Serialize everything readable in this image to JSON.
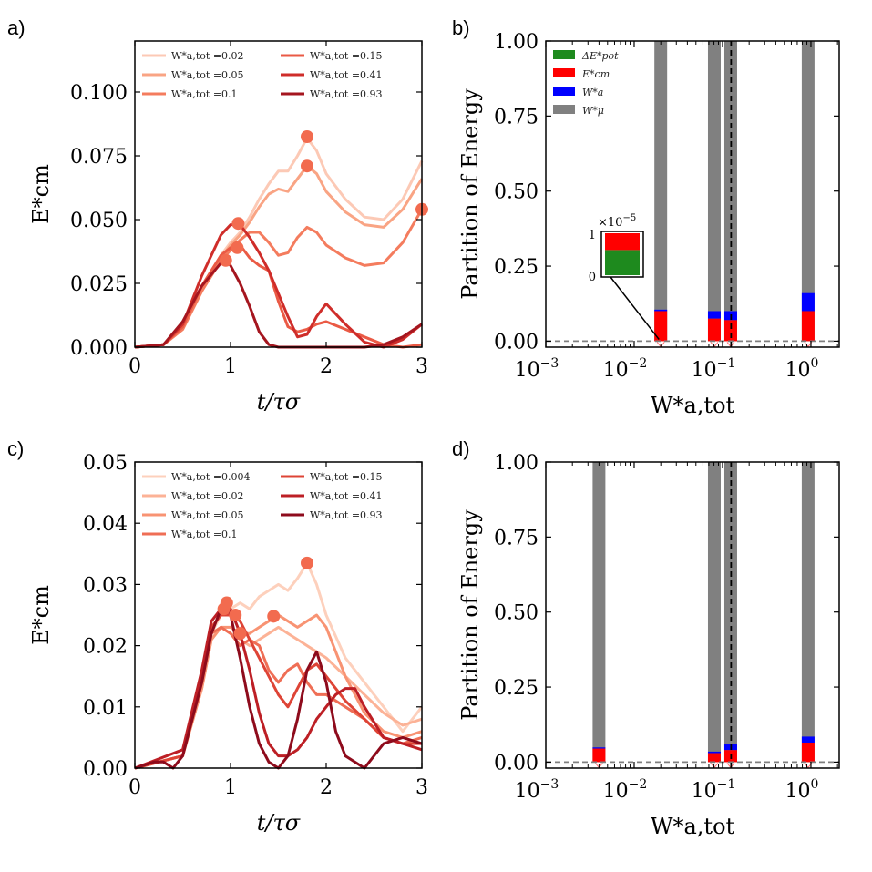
{
  "chart_data": [
    {
      "id": "a",
      "panel_label": "a)",
      "type": "line",
      "xlabel": "t/τσ",
      "ylabel": "E*cm",
      "xlim": [
        0,
        3
      ],
      "ylim": [
        0,
        0.12
      ],
      "xticks": [
        "0",
        "1",
        "2",
        "3"
      ],
      "yticks": [
        "0.000",
        "0.025",
        "0.050",
        "0.075",
        "0.100"
      ],
      "ytick_values": [
        0,
        0.025,
        0.05,
        0.075,
        0.1
      ],
      "legend": {
        "placement": "top",
        "ncol": 2
      },
      "series": [
        {
          "name": "W*a,tot =0.02",
          "color": "#fcc9b5",
          "x": [
            0,
            0.3,
            0.5,
            0.7,
            0.9,
            1.0,
            1.1,
            1.2,
            1.3,
            1.4,
            1.5,
            1.6,
            1.7,
            1.8,
            1.9,
            2.0,
            2.2,
            2.4,
            2.6,
            2.8,
            3.0
          ],
          "y": [
            0,
            0.001,
            0.007,
            0.022,
            0.036,
            0.041,
            0.045,
            0.051,
            0.058,
            0.064,
            0.069,
            0.069,
            0.075,
            0.082,
            0.077,
            0.068,
            0.058,
            0.051,
            0.05,
            0.058,
            0.073
          ],
          "marker": {
            "x": 1.8,
            "y": 0.0825
          }
        },
        {
          "name": "W*a,tot =0.05",
          "color": "#f9a484",
          "x": [
            0,
            0.3,
            0.5,
            0.7,
            0.9,
            1.0,
            1.1,
            1.2,
            1.3,
            1.4,
            1.5,
            1.6,
            1.7,
            1.8,
            1.9,
            2.0,
            2.2,
            2.4,
            2.6,
            2.8,
            3.0
          ],
          "y": [
            0,
            0.001,
            0.007,
            0.022,
            0.035,
            0.04,
            0.044,
            0.049,
            0.055,
            0.06,
            0.062,
            0.061,
            0.066,
            0.071,
            0.068,
            0.061,
            0.053,
            0.048,
            0.047,
            0.054,
            0.066
          ],
          "marker": {
            "x": 1.8,
            "y": 0.071
          }
        },
        {
          "name": "W*a,tot =0.1",
          "color": "#f47c5e",
          "x": [
            0,
            0.3,
            0.5,
            0.7,
            0.9,
            1.0,
            1.1,
            1.2,
            1.3,
            1.4,
            1.5,
            1.6,
            1.7,
            1.8,
            1.9,
            2.0,
            2.2,
            2.4,
            2.6,
            2.8,
            3.0
          ],
          "y": [
            0,
            0.001,
            0.007,
            0.022,
            0.034,
            0.038,
            0.042,
            0.045,
            0.045,
            0.041,
            0.036,
            0.037,
            0.043,
            0.047,
            0.045,
            0.04,
            0.035,
            0.032,
            0.033,
            0.041,
            0.054
          ],
          "marker": {
            "x": 3.0,
            "y": 0.054
          }
        },
        {
          "name": "W*a,tot =0.15",
          "color": "#ea5a45",
          "x": [
            0,
            0.3,
            0.5,
            0.7,
            0.9,
            1.0,
            1.1,
            1.2,
            1.3,
            1.4,
            1.5,
            1.6,
            1.7,
            1.8,
            1.9,
            2.0,
            2.2,
            2.4,
            2.6,
            2.8,
            3.0
          ],
          "y": [
            0,
            0.001,
            0.008,
            0.024,
            0.036,
            0.039,
            0.04,
            0.035,
            0.032,
            0.03,
            0.018,
            0.008,
            0.006,
            0.007,
            0.009,
            0.01,
            0.007,
            0.004,
            0.001,
            0.0,
            0.001
          ],
          "marker": {
            "x": 1.07,
            "y": 0.039
          }
        },
        {
          "name": "W*a,tot =0.41",
          "color": "#cf2d2a",
          "x": [
            0,
            0.3,
            0.5,
            0.7,
            0.9,
            1.0,
            1.1,
            1.2,
            1.3,
            1.4,
            1.5,
            1.6,
            1.7,
            1.8,
            1.9,
            2.0,
            2.2,
            2.4,
            2.6,
            2.8,
            3.0
          ],
          "y": [
            0,
            0.001,
            0.009,
            0.028,
            0.044,
            0.048,
            0.048,
            0.043,
            0.037,
            0.03,
            0.021,
            0.012,
            0.004,
            0.005,
            0.012,
            0.017,
            0.009,
            0.002,
            0.0,
            0.003,
            0.009
          ],
          "marker": {
            "x": 1.08,
            "y": 0.0485
          }
        },
        {
          "name": "W*a,tot =0.93",
          "color": "#a5161f",
          "x": [
            0,
            0.3,
            0.5,
            0.7,
            0.9,
            0.95,
            1.0,
            1.1,
            1.2,
            1.3,
            1.4,
            1.5,
            1.6,
            1.7,
            1.8,
            1.9,
            2.0,
            2.2,
            2.4,
            2.6,
            2.8,
            3.0
          ],
          "y": [
            0,
            0.001,
            0.01,
            0.024,
            0.033,
            0.034,
            0.032,
            0.025,
            0.016,
            0.006,
            0.001,
            0.0,
            0.0,
            0.0,
            0.0,
            0.0,
            0.0,
            0.0,
            0.0,
            0.001,
            0.004,
            0.009
          ],
          "marker": {
            "x": 0.95,
            "y": 0.034
          }
        }
      ]
    },
    {
      "id": "b",
      "panel_label": "b)",
      "type": "bar",
      "xscale": "log",
      "xlabel": "W*a,tot",
      "ylabel": "Partition of Energy",
      "xlim_exp": [
        -3,
        0.32
      ],
      "ylim": [
        -0.02,
        1.0
      ],
      "xticks": [
        {
          "label": "10",
          "exp": "−3",
          "pos": -3
        },
        {
          "label": "10",
          "exp": "−2",
          "pos": -2
        },
        {
          "label": "10",
          "exp": "−1",
          "pos": -1
        },
        {
          "label": "10",
          "exp": "0",
          "pos": 0
        }
      ],
      "yticks": [
        "0.00",
        "0.25",
        "0.50",
        "0.75",
        "1.00"
      ],
      "ytick_values": [
        0,
        0.25,
        0.5,
        0.75,
        1.0
      ],
      "legend": {
        "placement": "top-left",
        "entries": [
          {
            "label": "ΔE*pot",
            "color": "#1e8a1e"
          },
          {
            "label": "E*cm",
            "color": "#ff0000"
          },
          {
            "label": "W*a",
            "color": "#0000ff"
          },
          {
            "label": "W*μ",
            "color": "#808080"
          }
        ]
      },
      "vline_x": 0.125,
      "hline_y": 0.0,
      "groups": [
        {
          "x": 0.02,
          "bars": [
            {
              "ecm": 0.1,
              "wa": 0.005
            }
          ]
        },
        {
          "x": 0.1,
          "bars": [
            {
              "ecm": 0.075,
              "wa": 0.025
            },
            {
              "ecm": 0.07,
              "wa": 0.03
            }
          ]
        },
        {
          "x": 0.93,
          "bars": [
            {
              "ecm": 0.1,
              "wa": 0.06
            }
          ]
        }
      ],
      "inset": {
        "multiplier": "×10",
        "multiplier_exp": "−5",
        "ytick_top": "1",
        "ytick_bottom": "0",
        "green_fraction": 0.6,
        "red_fraction": 0.4
      }
    },
    {
      "id": "c",
      "panel_label": "c)",
      "type": "line",
      "xlabel": "t/τσ",
      "ylabel": "E*cm",
      "xlim": [
        0,
        3
      ],
      "ylim": [
        0,
        0.05
      ],
      "xticks": [
        "0",
        "1",
        "2",
        "3"
      ],
      "yticks": [
        "0.00",
        "0.01",
        "0.02",
        "0.03",
        "0.04",
        "0.05"
      ],
      "ytick_values": [
        0,
        0.01,
        0.02,
        0.03,
        0.04,
        0.05
      ],
      "legend": {
        "placement": "top",
        "ncol": 2
      },
      "series": [
        {
          "name": "W*a,tot =0.004",
          "color": "#fdd0bc",
          "x": [
            0,
            0.5,
            0.7,
            0.8,
            0.9,
            1.0,
            1.1,
            1.2,
            1.3,
            1.4,
            1.5,
            1.6,
            1.7,
            1.8,
            1.9,
            2.0,
            2.2,
            2.4,
            2.6,
            2.8,
            3.0
          ],
          "y": [
            0,
            0.002,
            0.014,
            0.022,
            0.025,
            0.026,
            0.027,
            0.026,
            0.028,
            0.029,
            0.03,
            0.029,
            0.031,
            0.0335,
            0.03,
            0.025,
            0.018,
            0.014,
            0.01,
            0.006,
            0.01
          ],
          "marker": {
            "x": 1.8,
            "y": 0.0335
          }
        },
        {
          "name": "W*a,tot =0.02",
          "color": "#fcb296",
          "x": [
            0,
            0.5,
            0.7,
            0.8,
            0.9,
            1.0,
            1.1,
            1.2,
            1.3,
            1.4,
            1.5,
            1.6,
            1.7,
            1.8,
            1.9,
            2.0,
            2.2,
            2.4,
            2.6,
            2.8,
            3.0
          ],
          "y": [
            0,
            0.002,
            0.013,
            0.021,
            0.023,
            0.022,
            0.021,
            0.02,
            0.021,
            0.022,
            0.023,
            0.022,
            0.021,
            0.02,
            0.019,
            0.018,
            0.015,
            0.012,
            0.009,
            0.007,
            0.008
          ],
          "marker": null
        },
        {
          "name": "W*a,tot =0.05",
          "color": "#f89373",
          "x": [
            0,
            0.5,
            0.7,
            0.8,
            0.9,
            1.0,
            1.1,
            1.2,
            1.3,
            1.4,
            1.5,
            1.6,
            1.7,
            1.8,
            1.9,
            2.0,
            2.2,
            2.4,
            2.6,
            2.8,
            3.0
          ],
          "y": [
            0,
            0.002,
            0.013,
            0.021,
            0.023,
            0.023,
            0.022,
            0.022,
            0.023,
            0.024,
            0.025,
            0.024,
            0.023,
            0.024,
            0.025,
            0.023,
            0.015,
            0.009,
            0.006,
            0.005,
            0.006
          ],
          "marker": {
            "x": 1.45,
            "y": 0.0248
          }
        },
        {
          "name": "W*a,tot =0.1",
          "color": "#ef6e55",
          "x": [
            0,
            0.5,
            0.7,
            0.8,
            0.9,
            1.0,
            1.1,
            1.2,
            1.3,
            1.4,
            1.5,
            1.6,
            1.7,
            1.8,
            1.9,
            2.0,
            2.2,
            2.4,
            2.6,
            2.8,
            3.0
          ],
          "y": [
            0,
            0.002,
            0.014,
            0.022,
            0.023,
            0.022,
            0.02,
            0.021,
            0.02,
            0.016,
            0.014,
            0.016,
            0.017,
            0.014,
            0.012,
            0.012,
            0.01,
            0.008,
            0.005,
            0.004,
            0.005
          ],
          "marker": {
            "x": 1.1,
            "y": 0.022
          }
        },
        {
          "name": "W*a,tot =0.15",
          "color": "#de4436",
          "x": [
            0,
            0.5,
            0.7,
            0.8,
            0.9,
            1.0,
            1.1,
            1.2,
            1.3,
            1.4,
            1.5,
            1.6,
            1.7,
            1.8,
            1.9,
            2.0,
            2.2,
            2.4,
            2.6,
            2.8,
            3.0
          ],
          "y": [
            0,
            0.002,
            0.015,
            0.023,
            0.025,
            0.025,
            0.024,
            0.021,
            0.018,
            0.015,
            0.012,
            0.01,
            0.013,
            0.016,
            0.017,
            0.015,
            0.011,
            0.008,
            0.005,
            0.004,
            0.004
          ],
          "marker": {
            "x": 1.05,
            "y": 0.025
          }
        },
        {
          "name": "W*a,tot =0.41",
          "color": "#bd1f25",
          "x": [
            0,
            0.5,
            0.7,
            0.8,
            0.9,
            1.0,
            1.1,
            1.2,
            1.3,
            1.4,
            1.5,
            1.6,
            1.7,
            1.8,
            1.9,
            2.0,
            2.1,
            2.2,
            2.3,
            2.4,
            2.6,
            2.8,
            3.0
          ],
          "y": [
            0,
            0.003,
            0.016,
            0.024,
            0.026,
            0.026,
            0.022,
            0.016,
            0.009,
            0.004,
            0.002,
            0.002,
            0.003,
            0.005,
            0.008,
            0.01,
            0.012,
            0.013,
            0.013,
            0.01,
            0.005,
            0.004,
            0.003
          ],
          "marker": {
            "x": 0.93,
            "y": 0.026
          }
        },
        {
          "name": "W*a,tot =0.93",
          "color": "#8e0b1c",
          "x": [
            0,
            0.2,
            0.3,
            0.4,
            0.5,
            0.7,
            0.8,
            0.9,
            0.95,
            1.0,
            1.1,
            1.2,
            1.3,
            1.4,
            1.5,
            1.6,
            1.7,
            1.8,
            1.9,
            2.0,
            2.1,
            2.2,
            2.4,
            2.6,
            2.8,
            3.0
          ],
          "y": [
            0,
            0.001,
            0.001,
            0.0,
            0.002,
            0.014,
            0.022,
            0.026,
            0.027,
            0.025,
            0.018,
            0.01,
            0.004,
            0.001,
            0.0,
            0.002,
            0.008,
            0.016,
            0.019,
            0.014,
            0.006,
            0.002,
            0.0,
            0.004,
            0.005,
            0.004
          ],
          "marker": {
            "x": 0.96,
            "y": 0.027
          }
        }
      ]
    },
    {
      "id": "d",
      "panel_label": "d)",
      "type": "bar",
      "xscale": "log",
      "xlabel": "W*a,tot",
      "ylabel": "Partition of Energy",
      "xlim_exp": [
        -3,
        0.32
      ],
      "ylim": [
        -0.02,
        1.0
      ],
      "xticks": [
        {
          "label": "10",
          "exp": "−3",
          "pos": -3
        },
        {
          "label": "10",
          "exp": "−2",
          "pos": -2
        },
        {
          "label": "10",
          "exp": "−1",
          "pos": -1
        },
        {
          "label": "10",
          "exp": "0",
          "pos": 0
        }
      ],
      "yticks": [
        "0.00",
        "0.25",
        "0.50",
        "0.75",
        "1.00"
      ],
      "ytick_values": [
        0,
        0.25,
        0.5,
        0.75,
        1.0
      ],
      "vline_x": 0.125,
      "hline_y": 0.0,
      "groups": [
        {
          "x": 0.004,
          "bars": [
            {
              "ecm": 0.045,
              "wa": 0.004
            }
          ]
        },
        {
          "x": 0.1,
          "bars": [
            {
              "ecm": 0.03,
              "wa": 0.005
            },
            {
              "ecm": 0.04,
              "wa": 0.02
            }
          ]
        },
        {
          "x": 0.93,
          "bars": [
            {
              "ecm": 0.065,
              "wa": 0.02
            }
          ]
        }
      ]
    }
  ]
}
